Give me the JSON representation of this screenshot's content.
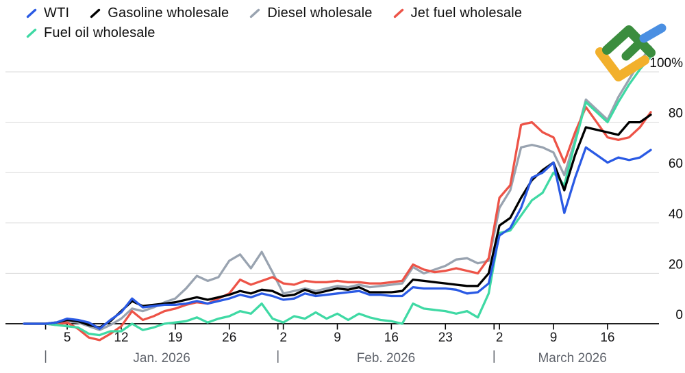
{
  "legend": {
    "rows": [
      [
        "WTI",
        "Gasoline wholesale",
        "Diesel wholesale",
        "Jet fuel wholesale"
      ],
      [
        "Fuel oil wholesale"
      ]
    ]
  },
  "watermark": {
    "name": "litefinance-logo",
    "colors": {
      "green": "#3b8d3e",
      "yellow": "#f2b02c",
      "blue": "#4a8fe2"
    }
  },
  "axis_style": {
    "gridline_color": "#d8d8d8",
    "baseline_color": "#000000",
    "tick_color": "#000000",
    "tick_label_color": "#18181a",
    "y_label_color": "#0a0a0a",
    "month_label_color": "#60646c"
  },
  "chart_data": {
    "type": "line",
    "title": "",
    "xlabel": "",
    "ylabel": "",
    "unit": "%",
    "grid": "horizontal",
    "legend_position": "top-left",
    "ylim": [
      -8,
      112
    ],
    "y_ticks": [
      0,
      20,
      40,
      60,
      80,
      100
    ],
    "y_tick_labels": [
      "0",
      "20",
      "40",
      "60",
      "80",
      "100%"
    ],
    "x_dates": [
      "Dec 30",
      "Dec 31",
      "Jan 1",
      "Jan 2",
      "Jan 5",
      "Jan 6",
      "Jan 7",
      "Jan 8",
      "Jan 9",
      "Jan 12",
      "Jan 13",
      "Jan 14",
      "Jan 15",
      "Jan 16",
      "Jan 19",
      "Jan 20",
      "Jan 21",
      "Jan 22",
      "Jan 23",
      "Jan 26",
      "Jan 27",
      "Jan 28",
      "Jan 29",
      "Jan 30",
      "Feb 2",
      "Feb 3",
      "Feb 4",
      "Feb 5",
      "Feb 6",
      "Feb 9",
      "Feb 10",
      "Feb 11",
      "Feb 12",
      "Feb 13",
      "Feb 16",
      "Feb 17",
      "Feb 18",
      "Feb 19",
      "Feb 20",
      "Feb 23",
      "Feb 24",
      "Feb 25",
      "Feb 26",
      "Feb 27",
      "Mar 2",
      "Mar 3",
      "Mar 4",
      "Mar 5",
      "Mar 6",
      "Mar 9",
      "Mar 10",
      "Mar 11",
      "Mar 12",
      "Mar 13",
      "Mar 16",
      "Mar 17",
      "Mar 18",
      "Mar 19",
      "Mar 20"
    ],
    "x_tick_indices": [
      4,
      9,
      14,
      19,
      24,
      29,
      34,
      39,
      44,
      49,
      54
    ],
    "x_tick_labels": [
      "5",
      "12",
      "19",
      "26",
      "2",
      "9",
      "16",
      "23",
      "2",
      "9",
      "16"
    ],
    "months": [
      {
        "label": "Jan. 2026",
        "boundary_index": 2
      },
      {
        "label": "Feb. 2026",
        "boundary_index": 23.5
      },
      {
        "label": "March 2026",
        "boundary_index": 43.5
      }
    ],
    "z_order": [
      "Diesel wholesale",
      "Jet fuel wholesale",
      "Fuel oil wholesale",
      "Gasoline wholesale",
      "WTI"
    ],
    "series": [
      {
        "name": "WTI",
        "color": "#2a5ae4",
        "values": [
          0,
          0,
          0,
          0.5,
          2,
          1.5,
          0.5,
          -2,
          1.5,
          4.5,
          10,
          6.5,
          7,
          7.5,
          7.5,
          8,
          9,
          8,
          9,
          10,
          11.5,
          10.5,
          12,
          11,
          9.5,
          10,
          12,
          11,
          11.5,
          12,
          12.5,
          13,
          11.5,
          11.5,
          11,
          11,
          14.5,
          14,
          14,
          14,
          13.5,
          12,
          12.5,
          16,
          35,
          38,
          46,
          58,
          60,
          64,
          44,
          58,
          70,
          67,
          64,
          66,
          65,
          66,
          69
        ]
      },
      {
        "name": "Gasoline wholesale",
        "color": "#000000",
        "values": [
          0,
          0,
          0,
          0.5,
          1.5,
          1,
          -0.5,
          -1.5,
          1,
          5,
          9,
          7,
          7.5,
          8,
          8.5,
          9.5,
          10.5,
          9.5,
          10.5,
          11.5,
          13,
          12,
          13.5,
          13,
          11,
          11.5,
          13.5,
          12,
          13,
          14,
          13.5,
          14.5,
          12.5,
          12.5,
          12.5,
          13,
          17.5,
          17,
          16.5,
          16,
          15.5,
          15,
          15,
          20,
          39,
          42,
          50,
          57,
          61,
          64,
          53,
          67,
          78,
          77,
          76,
          75,
          80,
          80,
          83
        ]
      },
      {
        "name": "Diesel wholesale",
        "color": "#99a3b0",
        "values": [
          0,
          0,
          0,
          0,
          1,
          0.5,
          -1,
          -2.5,
          -0.5,
          2,
          6,
          5,
          6.5,
          8.5,
          10,
          14,
          19,
          17,
          18.5,
          25,
          27.5,
          22,
          28.5,
          20.5,
          12,
          13,
          14,
          13,
          14,
          15,
          14.5,
          15.5,
          14.5,
          15,
          15.5,
          16,
          22.5,
          20,
          21.5,
          23,
          25.5,
          26,
          24,
          25,
          46,
          53,
          70,
          71,
          70,
          68,
          59,
          73,
          89,
          85,
          81,
          90,
          97,
          104,
          110
        ]
      },
      {
        "name": "Jet fuel wholesale",
        "color": "#ed5347",
        "values": [
          0,
          0,
          0,
          -0.5,
          0.5,
          -2,
          -5.5,
          -6.5,
          -4,
          -1,
          5,
          1.5,
          3,
          5,
          6,
          7.5,
          8.5,
          8,
          10,
          12,
          17.5,
          15.5,
          17,
          18.5,
          16,
          15.5,
          17,
          16.5,
          16.5,
          17,
          16.5,
          16.5,
          16,
          16,
          16.5,
          17,
          23.5,
          21.5,
          20.5,
          21,
          22,
          21,
          20,
          26,
          50,
          55,
          79,
          80,
          76,
          74,
          64,
          76,
          86,
          80,
          74,
          73,
          74,
          78,
          84
        ]
      },
      {
        "name": "Fuel oil wholesale",
        "color": "#3fd9a4",
        "values": [
          0,
          0,
          0,
          -0.5,
          -1,
          -1.5,
          -4,
          -4.5,
          -3,
          -3,
          0,
          -2.5,
          -1.5,
          0,
          0.5,
          1,
          2.5,
          0.5,
          2,
          3,
          5,
          4,
          8,
          2,
          0.5,
          3,
          2,
          4.5,
          2,
          4,
          1.5,
          4,
          2.5,
          1.5,
          1,
          0,
          8,
          6,
          5.5,
          5,
          4,
          5,
          2.5,
          12,
          36,
          37,
          43,
          49,
          52,
          60,
          55,
          72,
          88,
          84,
          80,
          88,
          95,
          101,
          106
        ]
      }
    ]
  }
}
